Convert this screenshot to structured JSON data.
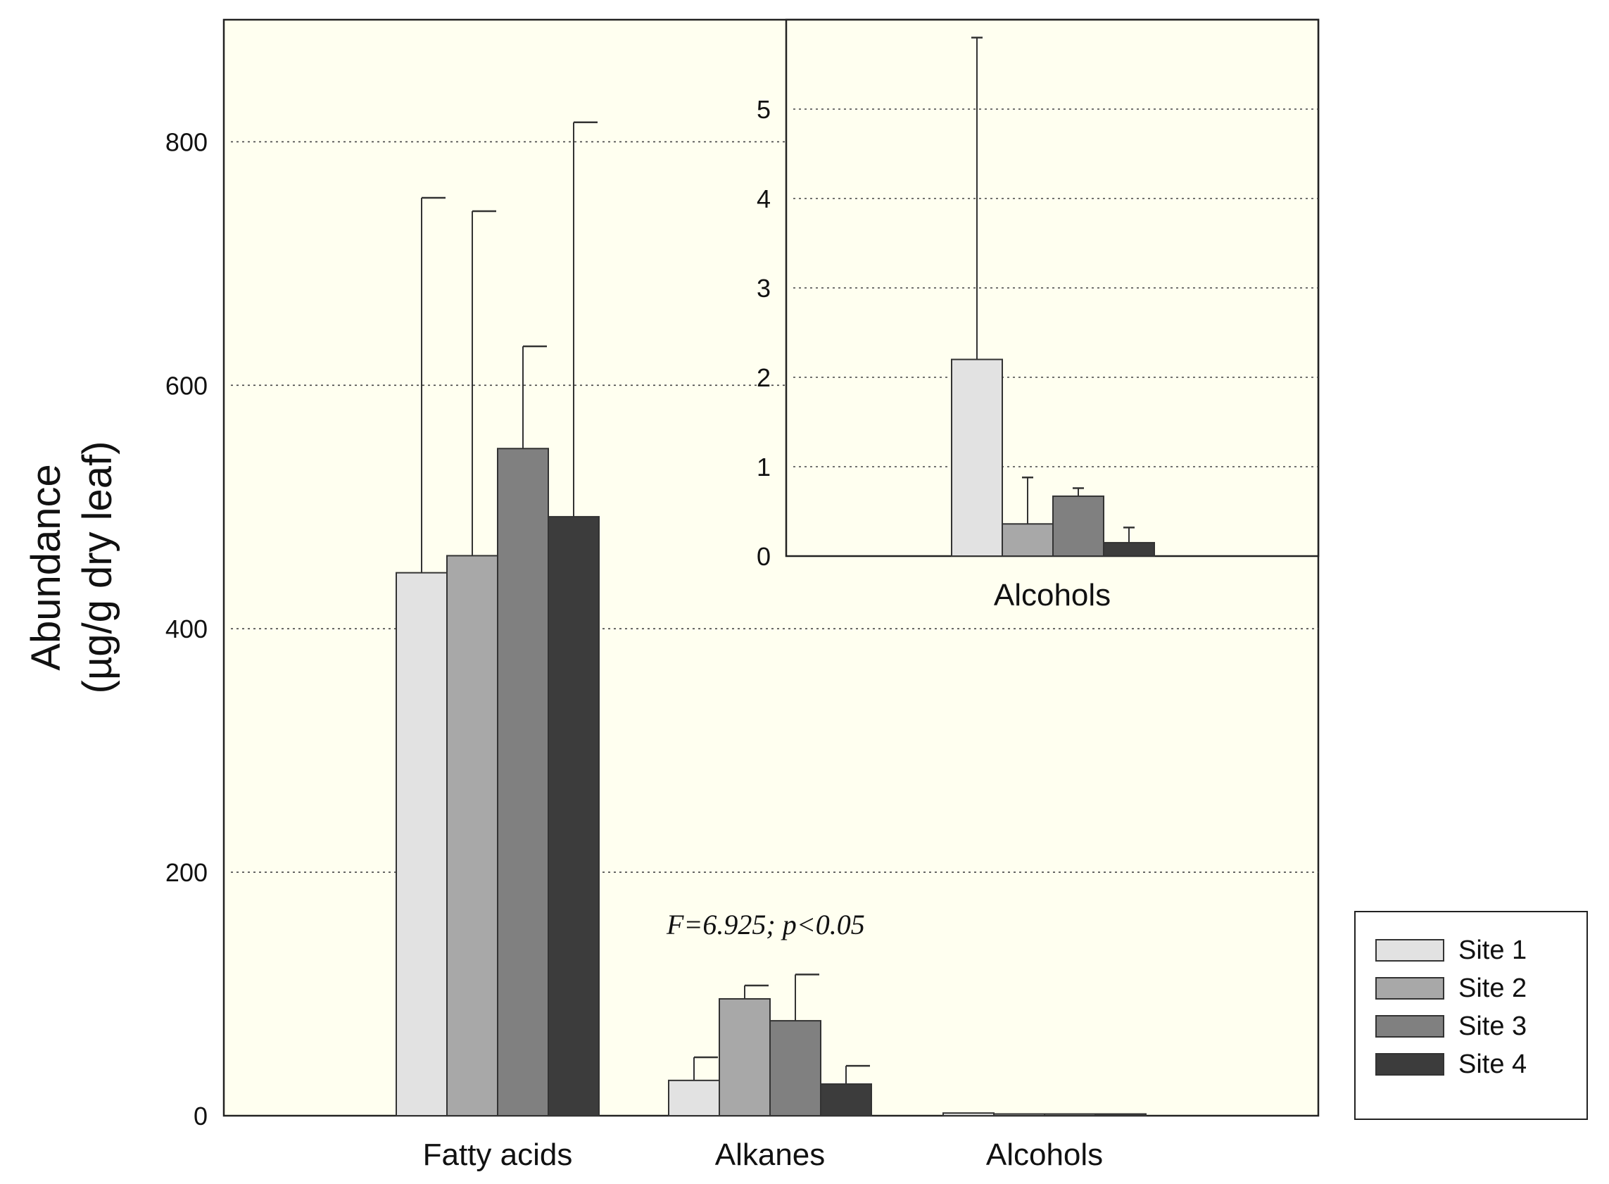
{
  "chart_data": {
    "type": "bar",
    "ylabel": "Abundance",
    "ylabel_unit": "(µg/g dry leaf)",
    "ylim": [
      0,
      900
    ],
    "yticks": [
      0,
      200,
      400,
      600,
      800
    ],
    "grid": true,
    "categories": [
      "Fatty acids",
      "Alkanes",
      "Alcohols"
    ],
    "series": [
      {
        "name": "Site 1",
        "color": "#e2e2e2",
        "values": [
          446,
          29,
          2.2
        ],
        "errors": [
          308,
          19,
          3.6
        ]
      },
      {
        "name": "Site 2",
        "color": "#a8a8a8",
        "values": [
          460,
          96,
          0.36
        ],
        "errors": [
          283,
          11,
          0.52
        ]
      },
      {
        "name": "Site 3",
        "color": "#808080",
        "values": [
          548,
          78,
          0.67
        ],
        "errors": [
          84,
          38,
          0.09
        ]
      },
      {
        "name": "Site 4",
        "color": "#3c3c3c",
        "values": [
          492,
          26,
          0.15
        ],
        "errors": [
          324,
          15,
          0.17
        ]
      }
    ],
    "annotation": "F=6.925; p<0.05",
    "legend_position": "bottom-right",
    "inset": {
      "type": "bar",
      "category": "Alcohols",
      "ylim": [
        0,
        6
      ],
      "yticks": [
        0,
        1,
        2,
        3,
        4,
        5
      ],
      "grid": true
    }
  }
}
